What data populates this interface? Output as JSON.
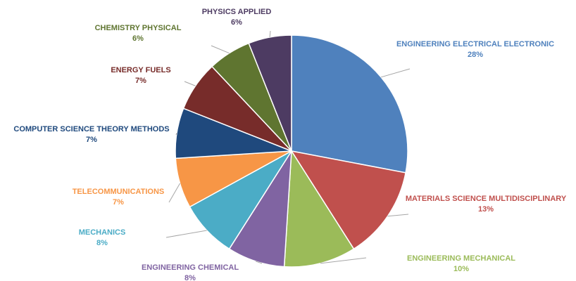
{
  "chart_data": {
    "type": "pie",
    "title": "",
    "slices": [
      {
        "label": "ENGINEERING ELECTRICAL ELECTRONIC",
        "percent_label": "28%",
        "value": 28,
        "color": "#4f81bd"
      },
      {
        "label": "MATERIALS SCIENCE MULTIDISCIPLINARY",
        "percent_label": "13%",
        "value": 13,
        "color": "#c0504d"
      },
      {
        "label": "ENGINEERING MECHANICAL",
        "percent_label": "10%",
        "value": 10,
        "color": "#9bbb59"
      },
      {
        "label": "ENGINEERING CHEMICAL",
        "percent_label": "8%",
        "value": 8,
        "color": "#8064a2"
      },
      {
        "label": "MECHANICS",
        "percent_label": "8%",
        "value": 8,
        "color": "#4bacc6"
      },
      {
        "label": "TELECOMMUNICATIONS",
        "percent_label": "7%",
        "value": 7,
        "color": "#f79646"
      },
      {
        "label": "COMPUTER SCIENCE THEORY METHODS",
        "percent_label": "7%",
        "value": 7,
        "color": "#1f497d"
      },
      {
        "label": "ENERGY FUELS",
        "percent_label": "7%",
        "value": 7,
        "color": "#772c2a"
      },
      {
        "label": "CHEMISTRY PHYSICAL",
        "percent_label": "6%",
        "value": 6,
        "color": "#5f7530"
      },
      {
        "label": "PHYSICS APPLIED",
        "percent_label": "6%",
        "value": 6,
        "color": "#4d3b62"
      }
    ]
  }
}
